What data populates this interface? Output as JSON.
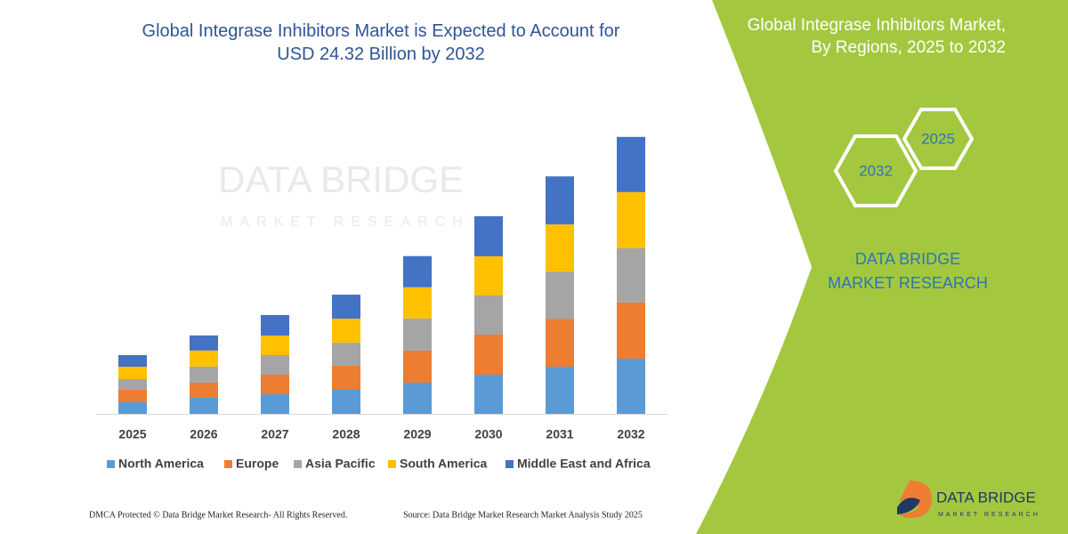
{
  "chart_data": {
    "type": "stacked-bar",
    "title": "Global Integrase Inhibitors Market is Expected to Account for USD 24.32 Billion by 2032",
    "categories": [
      "2025",
      "2026",
      "2027",
      "2028",
      "2029",
      "2030",
      "2031",
      "2032"
    ],
    "series": [
      {
        "name": "North America",
        "color": "#5b9bd5",
        "values": [
          1.02,
          1.41,
          1.72,
          2.11,
          2.74,
          3.44,
          4.14,
          4.85
        ]
      },
      {
        "name": "Europe",
        "color": "#ed7d31",
        "values": [
          1.09,
          1.33,
          1.72,
          2.11,
          2.82,
          3.52,
          4.22,
          4.93
        ]
      },
      {
        "name": "Asia Pacific",
        "color": "#a5a5a5",
        "values": [
          0.94,
          1.41,
          1.72,
          2.03,
          2.82,
          3.44,
          4.14,
          4.77
        ]
      },
      {
        "name": "South America",
        "color": "#ffc000",
        "values": [
          1.09,
          1.41,
          1.72,
          2.11,
          2.74,
          3.44,
          4.14,
          4.93
        ]
      },
      {
        "name": "Middle East and Africa",
        "color": "#4472c4",
        "values": [
          1.02,
          1.33,
          1.8,
          2.11,
          2.74,
          3.52,
          4.22,
          4.85
        ]
      }
    ]
  },
  "watermark": {
    "name": "DATA BRIDGE",
    "tagline": "MARKET RESEARCH"
  },
  "panel": {
    "title": "Global Integrase Inhibitors Market, By Regions, 2025 to 2032",
    "hex_start": "2025",
    "hex_end": "2032",
    "brand": "DATA BRIDGE MARKET RESEARCH"
  },
  "logo": {
    "name": "DATA BRIDGE",
    "tagline": "MARKET RESEARCH"
  },
  "footer": {
    "rights": "DMCA Protected © Data Bridge Market Research- All Rights Reserved.",
    "source": "Source: Data Bridge Market Research  Market Analysis Study 2025"
  }
}
